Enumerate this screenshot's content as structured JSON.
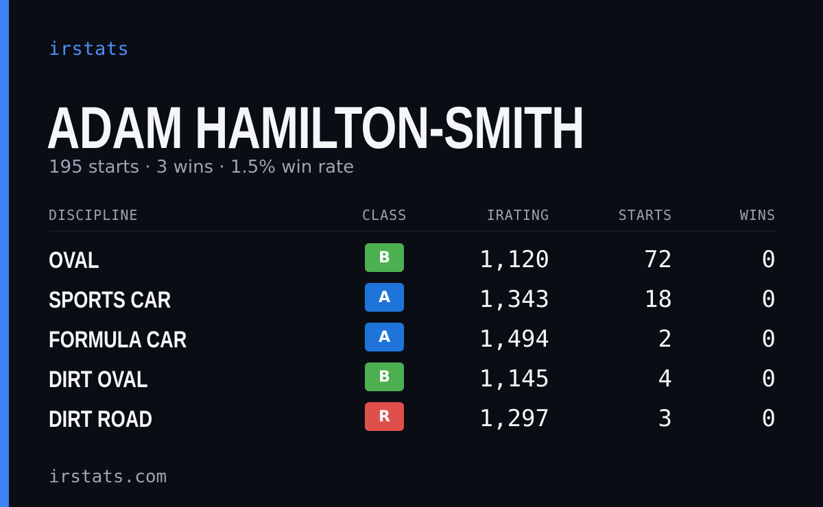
{
  "brand": "irstats",
  "driver": {
    "name": "ADAM HAMILTON-SMITH",
    "summary": "195 starts · 3 wins · 1.5% win rate"
  },
  "table": {
    "headers": {
      "discipline": "DISCIPLINE",
      "class": "CLASS",
      "irating": "IRATING",
      "starts": "STARTS",
      "wins": "WINS"
    },
    "rows": [
      {
        "discipline": "OVAL",
        "class": "B",
        "irating": "1,120",
        "starts": "72",
        "wins": "0"
      },
      {
        "discipline": "SPORTS CAR",
        "class": "A",
        "irating": "1,343",
        "starts": "18",
        "wins": "0"
      },
      {
        "discipline": "FORMULA CAR",
        "class": "A",
        "irating": "1,494",
        "starts": "2",
        "wins": "0"
      },
      {
        "discipline": "DIRT OVAL",
        "class": "B",
        "irating": "1,145",
        "starts": "4",
        "wins": "0"
      },
      {
        "discipline": "DIRT ROAD",
        "class": "R",
        "irating": "1,297",
        "starts": "3",
        "wins": "0"
      }
    ]
  },
  "footer": {
    "domain": "irstats.com"
  },
  "colors": {
    "background": "#0a0d14",
    "accent": "#3b82f6",
    "class_A": "#1e74d8",
    "class_B": "#4caf50",
    "class_R": "#e0504a"
  }
}
